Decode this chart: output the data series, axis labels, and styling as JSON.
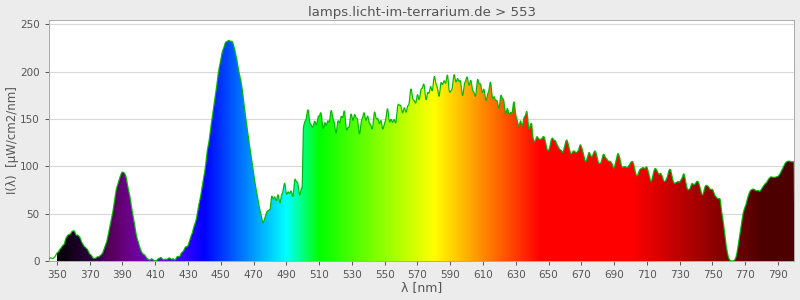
{
  "title": "lamps.licht-im-terrarium.de > 553",
  "xlabel": "λ [nm]",
  "ylabel": "I(λ)  [μW/cm2/nm]",
  "xlim": [
    345,
    800
  ],
  "ylim": [
    0,
    255
  ],
  "yticks": [
    0,
    50,
    100,
    150,
    200,
    250
  ],
  "xticks": [
    350,
    370,
    390,
    410,
    430,
    450,
    470,
    490,
    510,
    530,
    550,
    570,
    590,
    610,
    630,
    650,
    670,
    690,
    710,
    730,
    750,
    770,
    790
  ],
  "background_color": "#ececec",
  "plot_bg_color": "#ffffff",
  "grid_color": "#d8d8d8",
  "title_color": "#555555",
  "axis_label_color": "#555555",
  "tick_label_color": "#555555",
  "green_line_color": "#00bb00",
  "figsize": [
    8.0,
    3.0
  ],
  "dpi": 100
}
